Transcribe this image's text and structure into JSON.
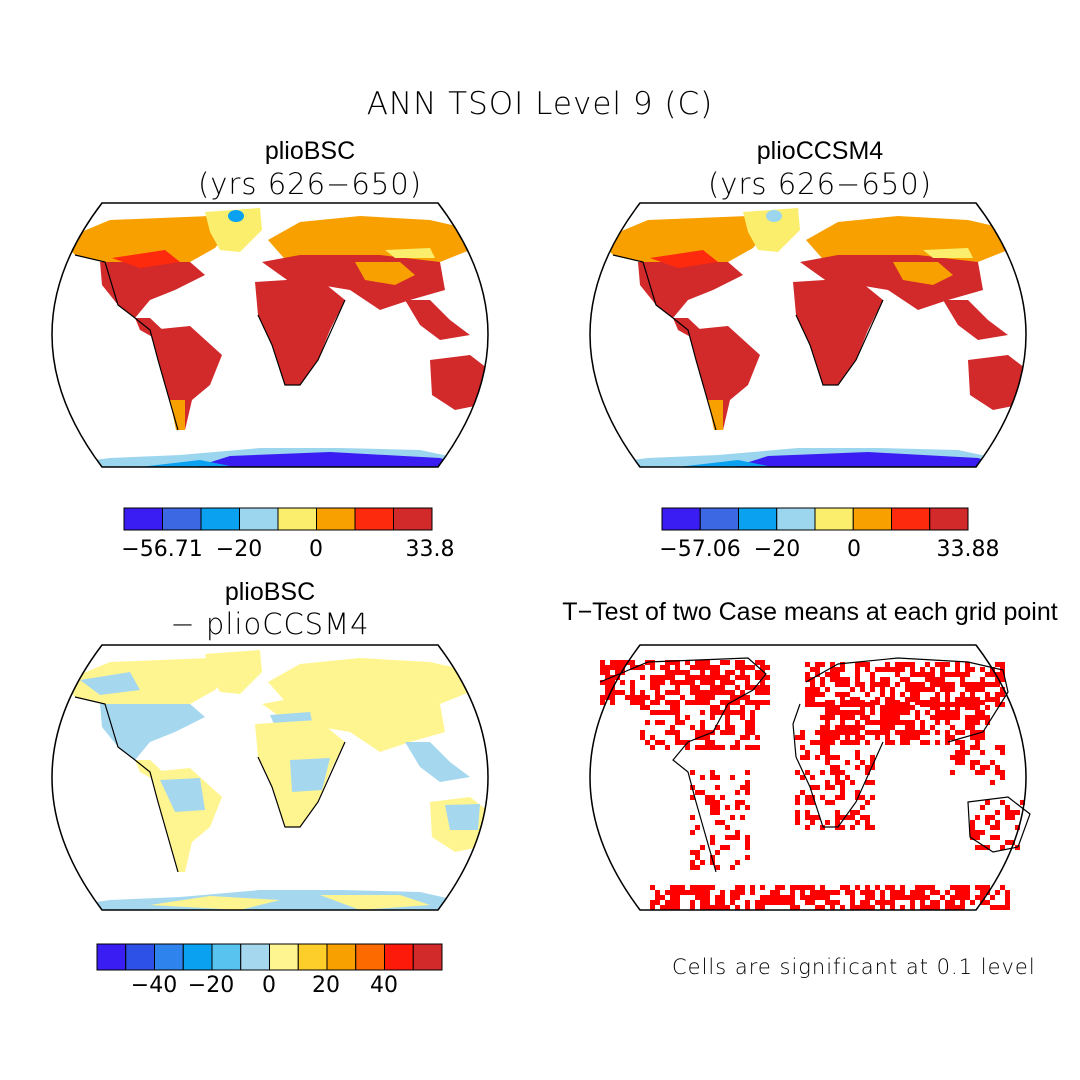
{
  "figure": {
    "title": "ANN TSOI Level 9 (C)",
    "footnote": "Cells are significant at 0.1 level"
  },
  "panels": [
    {
      "title": "plioBSC",
      "subtitle": "(yrs 626-650)",
      "colorbar": {
        "colors": [
          "#3a1df2",
          "#3c68e4",
          "#0aa2f0",
          "#9cd5ee",
          "#fbee6c",
          "#f7a000",
          "#fe2a0e",
          "#d2292b"
        ],
        "labels": [
          "-56.71",
          "-20",
          "0",
          "33.8"
        ],
        "min": -56.71,
        "max": 33.8
      }
    },
    {
      "title": "plioCCSM4",
      "subtitle": "(yrs 626-650)",
      "colorbar": {
        "colors": [
          "#3a1df2",
          "#3c68e4",
          "#0aa2f0",
          "#9cd5ee",
          "#fbee6c",
          "#f7a000",
          "#fe2a0e",
          "#d2292b"
        ],
        "labels": [
          "-57.06",
          "-20",
          "0",
          "33.88"
        ],
        "min": -57.06,
        "max": 33.88
      }
    },
    {
      "title": "plioBSC",
      "subtitle": "- plioCCSM4",
      "colorbar": {
        "colors": [
          "#3a1df2",
          "#2d50e6",
          "#2f83ec",
          "#0aa2f0",
          "#58c3ee",
          "#a5d8ef",
          "#fff590",
          "#fdcd2a",
          "#f7a000",
          "#fd6a00",
          "#fe1a0a",
          "#d2292b"
        ],
        "labels": [
          "-40",
          "-20",
          "0",
          "20",
          "40"
        ]
      }
    },
    {
      "title": "T-Test of two Case means at each grid point",
      "marker_color": "#ff0000"
    }
  ]
}
